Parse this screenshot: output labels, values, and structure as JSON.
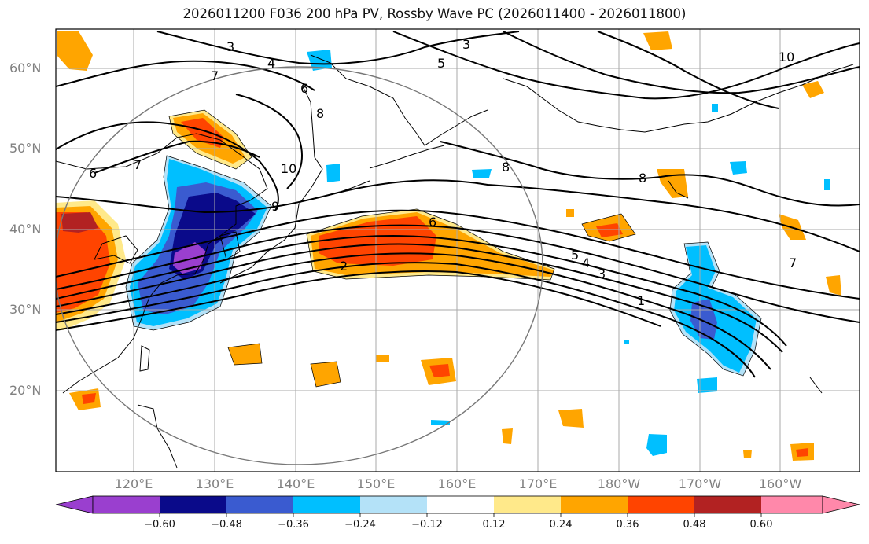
{
  "title": "2026011200 F036 200 hPa PV, Rossby Wave PC (2026011400 - 2026011800)",
  "lat_labels": [
    "60°N",
    "50°N",
    "40°N",
    "30°N",
    "20°N"
  ],
  "lon_labels": [
    "120°E",
    "130°E",
    "140°E",
    "150°E",
    "160°E",
    "170°E",
    "180°W",
    "170°W",
    "160°W"
  ],
  "contour_labels": [
    "3",
    "4",
    "5",
    "6",
    "7",
    "8",
    "10",
    "9",
    "6",
    "7",
    "8",
    "2",
    "6",
    "5",
    "4",
    "3",
    "1",
    "7",
    "8",
    "10",
    "3"
  ],
  "colorbar": {
    "ticks": [
      "−0.60",
      "−0.48",
      "−0.36",
      "−0.24",
      "−0.12",
      "0.12",
      "0.24",
      "0.36",
      "0.48",
      "0.60"
    ],
    "colors": [
      "#9a3fcf",
      "#0a0a8a",
      "#3a5bd0",
      "#00bfff",
      "#b4e2f8",
      "#ffffff",
      "#ffe98a",
      "#ffa500",
      "#ff4400",
      "#b22222",
      "#ff88aa"
    ]
  }
}
